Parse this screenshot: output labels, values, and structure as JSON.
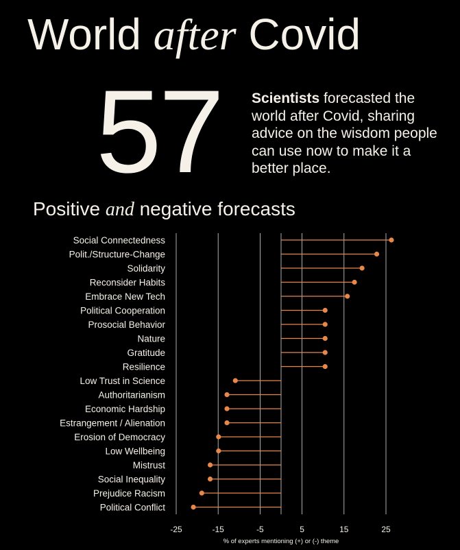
{
  "header": {
    "title_part1": "World",
    "title_part2": "after",
    "title_part3": "Covid"
  },
  "hero": {
    "number": "57",
    "blurb_bold": "Scientists",
    "blurb_rest": " forecasted the world after Covid, sharing advice on the wisdom people can use now to make it a better place."
  },
  "subtitle": {
    "part1": "Positive",
    "part2": "and",
    "part3": "negative forecasts"
  },
  "colors": {
    "background": "#000000",
    "text": "#f5f1e8",
    "accent": "#e8874a",
    "grid": "#ffffff"
  },
  "chart_data": {
    "type": "lollipop",
    "xlabel": "% of experts mentioning (+) or (-) theme",
    "xlim": [
      -25,
      27
    ],
    "xticks": [
      -25,
      -15,
      -5,
      5,
      15,
      25
    ],
    "grid": true,
    "baseline": 0,
    "categories": [
      "Social Connectedness",
      "Polit./Structure-Change",
      "Solidarity",
      "Reconsider Habits",
      "Embrace New Tech",
      "Political Cooperation",
      "Prosocial Behavior",
      "Nature",
      "Gratitude",
      "Resilience",
      "Low Trust in Science",
      "Authoritarianism",
      "Economic Hardship",
      "Estrangement / Alienation",
      "Erosion of Democracy",
      "Low Wellbeing",
      "Mistrust",
      "Social Inequality",
      "Prejudice Racism",
      "Political Conflict"
    ],
    "values": [
      26.3,
      22.8,
      19.3,
      17.5,
      15.8,
      10.5,
      10.5,
      10.5,
      10.5,
      10.5,
      -10.9,
      -12.9,
      -12.9,
      -12.9,
      -14.9,
      -14.9,
      -16.9,
      -16.9,
      -18.9,
      -20.9
    ]
  }
}
